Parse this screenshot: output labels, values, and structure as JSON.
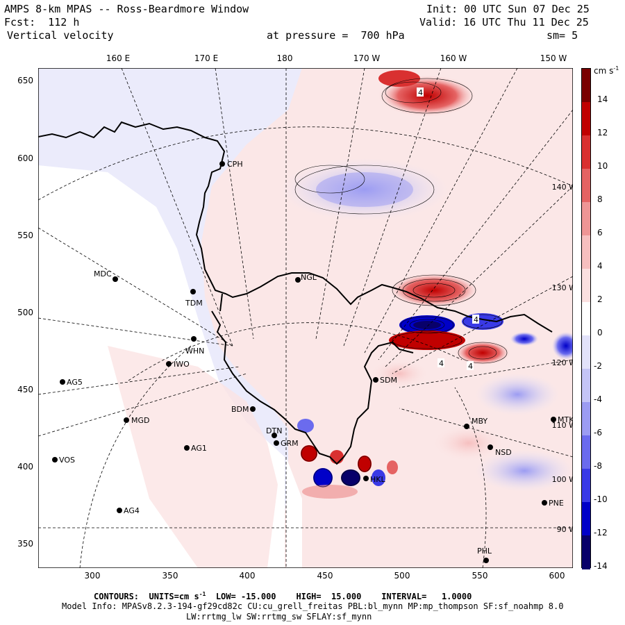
{
  "header": {
    "title": "AMPS 8-km MPAS -- Ross-Beardmore Window",
    "fcst": "Fcst:  112 h",
    "field": "Vertical velocity",
    "init": "Init: 00 UTC Sun 07 Dec 25",
    "valid": "Valid: 16 UTC Thu 11 Dec 25",
    "pressure": "at pressure =  700 hPa",
    "smooth": "sm= 5"
  },
  "top_axis": [
    "160 E",
    "170 E",
    "180",
    "170 W",
    "160 W",
    "150 W"
  ],
  "left_axis": [
    "650",
    "600",
    "550",
    "500",
    "450",
    "400",
    "350"
  ],
  "bottom_axis": [
    "300",
    "350",
    "400",
    "450",
    "500",
    "550",
    "600"
  ],
  "colorbar": {
    "units_label": "cm s",
    "units_exp": "-1",
    "ticks": [
      "14",
      "12",
      "10",
      "8",
      "6",
      "4",
      "2",
      "0",
      "-2",
      "-4",
      "-6",
      "-8",
      "-10",
      "-12",
      "-14"
    ],
    "overlaps": [
      "140 W",
      "130 W",
      "120 W",
      "110 W",
      "100 W",
      "90 W"
    ],
    "colors": [
      "#08006a",
      "#0000c8",
      "#3a3ae6",
      "#6b6bee",
      "#9c9cf2",
      "#c4c4f6",
      "#e2e2fa",
      "#ffffff",
      "#fbe0e0",
      "#f6bfbf",
      "#ee9595",
      "#e56363",
      "#d93030",
      "#c00000",
      "#7a0000"
    ]
  },
  "stations": [
    {
      "name": "CPH"
    },
    {
      "name": "MDC"
    },
    {
      "name": "TDM"
    },
    {
      "name": "NGL"
    },
    {
      "name": "WHN"
    },
    {
      "name": "IWO"
    },
    {
      "name": "AG5"
    },
    {
      "name": "SDM"
    },
    {
      "name": "BDM"
    },
    {
      "name": "MGD"
    },
    {
      "name": "DTN"
    },
    {
      "name": "GRM"
    },
    {
      "name": "AG1"
    },
    {
      "name": "VOS"
    },
    {
      "name": "MBY"
    },
    {
      "name": "MTK"
    },
    {
      "name": "NSD"
    },
    {
      "name": "HKL"
    },
    {
      "name": "AG4"
    },
    {
      "name": "PNE"
    },
    {
      "name": "PHL"
    }
  ],
  "contour_labels": [
    "4",
    "4",
    "4",
    "4"
  ],
  "footer": {
    "contours_label": "CONTOURS:",
    "units_label": "UNITS=cm s",
    "units_exp": "-1",
    "low": "LOW= -15.000",
    "high": "HIGH=  15.000",
    "interval": "INTERVAL=   1.0000",
    "model_info": "Model Info: MPASv8.2.3-194-gf29cd82c CU:cu_grell_freitas PBL:bl_mynn MP:mp_thompson SF:sf_noahmp 8.0",
    "physics": "LW:rrtmg_lw SW:rrtmg_sw SFLAY:sf_mynn"
  }
}
